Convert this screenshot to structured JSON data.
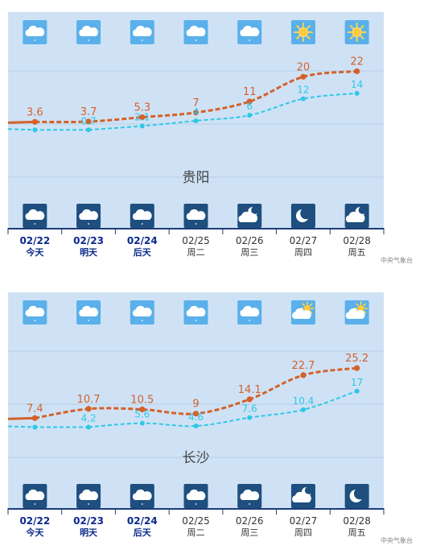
{
  "source_label": "中央气象台",
  "colors": {
    "plot_bg": "#cfe2f5",
    "grid": "#b4cde6",
    "high_line": "#d4612a",
    "low_line": "#2ec8e6",
    "icon_bg_light": "#5ab0ea",
    "icon_bg_dark": "#1e4f7e",
    "axis": "#1d3b7a",
    "date_bold": "#0a2a8c",
    "date_normal": "#333333",
    "city_label": "#444444",
    "source": "#888888"
  },
  "chart_data": [
    {
      "type": "line",
      "title": "贵阳",
      "categories": [
        "02/22",
        "02/23",
        "02/24",
        "02/25",
        "02/26",
        "02/27",
        "02/28"
      ],
      "weekday_labels": [
        "今天",
        "明天",
        "后天",
        "周二",
        "周三",
        "周四",
        "周五"
      ],
      "highlight_days": 3,
      "day_icons": [
        "cloud-icon",
        "cloud-icon",
        "cloud-icon",
        "cloud-icon",
        "cloud-icon",
        "sun-icon",
        "sun-icon"
      ],
      "night_icons": [
        "cloud-icon",
        "cloud-icon",
        "cloud-icon",
        "cloud-icon",
        "moon-cloud-icon",
        "moon-icon",
        "moon-cloud-icon"
      ],
      "series": [
        {
          "values": [
            3.6,
            3.7,
            5.3,
            7,
            11,
            20,
            22
          ]
        },
        {
          "values": [
            null,
            0.7,
            2.1,
            4,
            6,
            12,
            14
          ]
        }
      ],
      "ylim": [
        -20,
        28
      ],
      "grid": true
    },
    {
      "type": "line",
      "title": "长沙",
      "categories": [
        "02/22",
        "02/23",
        "02/24",
        "02/25",
        "02/26",
        "02/27",
        "02/28"
      ],
      "weekday_labels": [
        "今天",
        "明天",
        "后天",
        "周二",
        "周三",
        "周四",
        "周五"
      ],
      "highlight_days": 3,
      "day_icons": [
        "cloud-icon",
        "cloud-icon",
        "cloud-icon",
        "cloud-icon",
        "cloud-icon",
        "sun-cloud-icon",
        "sun-cloud-icon"
      ],
      "night_icons": [
        "cloud-icon",
        "cloud-icon",
        "cloud-icon",
        "cloud-icon",
        "cloud-icon",
        "moon-cloud-icon",
        "moon-icon"
      ],
      "series": [
        {
          "values": [
            7.4,
            10.7,
            10.5,
            9,
            14.1,
            22.7,
            25.2
          ]
        },
        {
          "values": [
            null,
            4.2,
            5.6,
            4.6,
            7.6,
            10.4,
            17
          ]
        }
      ],
      "ylim": [
        -10,
        37
      ],
      "grid": true
    }
  ]
}
